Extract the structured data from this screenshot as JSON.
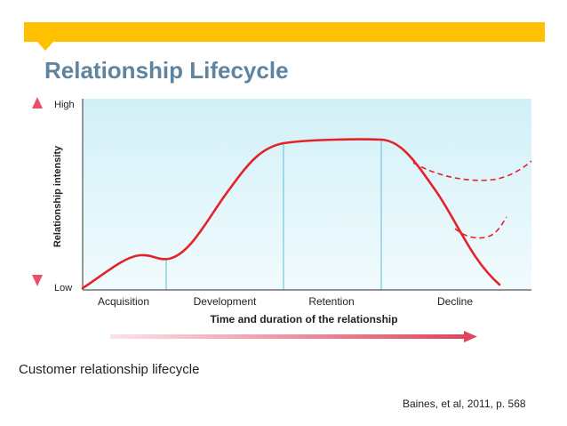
{
  "slide": {
    "title": "Relationship Lifecycle",
    "caption": "Customer relationship lifecycle",
    "citation": "Baines, et al, 2011, p. 568"
  },
  "diagram": {
    "y_axis_label": "Relationship intensity",
    "y_high_label": "High",
    "y_low_label": "Low",
    "x_axis_label": "Time and duration of the relationship",
    "stages": [
      "Acquisition",
      "Development",
      "Retention",
      "Decline"
    ],
    "colors": {
      "curve": "#e2232a",
      "plot_background": "#dff4f9",
      "stage_divider": "#7fcbdc",
      "banner": "#ffc000",
      "title": "#5f849f",
      "axis_arrow": "#e8506e"
    }
  }
}
